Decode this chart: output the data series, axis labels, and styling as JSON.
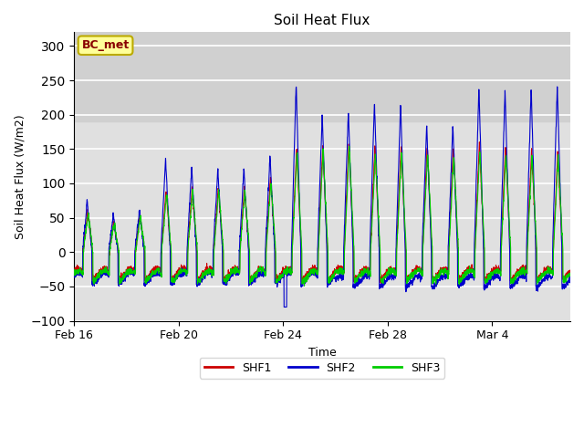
{
  "title": "Soil Heat Flux",
  "xlabel": "Time",
  "ylabel": "Soil Heat Flux (W/m2)",
  "ylim": [
    -100,
    320
  ],
  "yticks": [
    -100,
    -50,
    0,
    50,
    100,
    150,
    200,
    250,
    300
  ],
  "lower_bg_color": "#e0e0e0",
  "upper_bg_color": "#d0d0d0",
  "upper_band_threshold": 190,
  "grid_color": "#ffffff",
  "line_colors": [
    "#cc0000",
    "#0000cc",
    "#00cc00"
  ],
  "legend_labels": [
    "SHF1",
    "SHF2",
    "SHF3"
  ],
  "annotation_text": "BC_met",
  "annotation_bg": "#ffff99",
  "annotation_border": "#bbaa00",
  "annotation_text_color": "#880000",
  "xtick_labels": [
    "Feb 16",
    "Feb 20",
    "Feb 24",
    "Feb 28",
    "Mar 4"
  ],
  "xtick_day_offsets": [
    0,
    4,
    8,
    12,
    16
  ],
  "n_days": 19,
  "points_per_day": 144,
  "night_val_shf1": -32,
  "night_val_shf2": -38,
  "night_val_shf3": -35,
  "day_amplitudes_shf2": [
    75,
    55,
    60,
    135,
    125,
    120,
    120,
    140,
    245,
    200,
    205,
    220,
    215,
    185,
    185,
    240,
    235,
    240,
    245
  ],
  "day_amplitudes_shf1": [
    60,
    45,
    55,
    90,
    95,
    95,
    95,
    110,
    150,
    155,
    160,
    155,
    155,
    155,
    155,
    160,
    155,
    150,
    145
  ],
  "day_amplitudes_shf3": [
    55,
    42,
    52,
    85,
    90,
    90,
    90,
    105,
    145,
    150,
    155,
    145,
    145,
    145,
    140,
    150,
    145,
    140,
    140
  ]
}
